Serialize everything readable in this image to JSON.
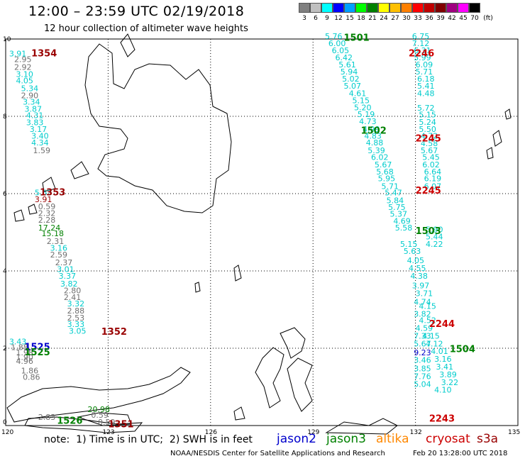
{
  "title": "12:00 – 23:59 UTC 02/19/2018",
  "subtitle": "12 hour collection of altimeter wave heights",
  "legend": {
    "colors": [
      "#808080",
      "#c0c0c0",
      "#00ffff",
      "#0000ff",
      "#00a0ff",
      "#00ff00",
      "#008000",
      "#ffff00",
      "#ffc000",
      "#ff8000",
      "#ff0000",
      "#c00000",
      "#800000",
      "#a00080",
      "#ff00ff",
      "#000000"
    ],
    "labels": [
      "3",
      "6",
      "9",
      "12",
      "15",
      "18",
      "21",
      "24",
      "27",
      "30",
      "33",
      "36",
      "39",
      "42",
      "45",
      "70",
      "(ft)"
    ]
  },
  "axes": {
    "lon_labels": [
      "120",
      "123",
      "126",
      "129",
      "132",
      "135"
    ],
    "lat_labels": [
      "10",
      "8",
      "6",
      "4",
      "2",
      "0"
    ]
  },
  "colors": {
    "jason2": "#0000cc",
    "jason3": "#008000",
    "altika": "#ff8800",
    "cryosat": "#cc0000",
    "s3a": "#990000",
    "cyan": "#00cccc",
    "gray": "#707070"
  },
  "passes": [
    {
      "id": "1354",
      "lon": 120.75,
      "lat": 9.55,
      "sat": "s3a"
    },
    {
      "id": "1353",
      "lon": 121.0,
      "lat": 5.95,
      "sat": "s3a"
    },
    {
      "id": "1352",
      "lon": 122.8,
      "lat": 2.35,
      "sat": "s3a"
    },
    {
      "id": "1351",
      "lon": 123.0,
      "lat": -0.05,
      "sat": "s3a"
    },
    {
      "id": "1525",
      "lon": 120.55,
      "lat": 1.95,
      "sat": "jason2"
    },
    {
      "id": "1525",
      "lon": 120.55,
      "lat": 1.82,
      "sat": "jason3"
    },
    {
      "id": "1526",
      "lon": 121.5,
      "lat": 0.05,
      "sat": "jason3"
    },
    {
      "id": "1501",
      "lon": 129.9,
      "lat": 9.95,
      "sat": "jason3"
    },
    {
      "id": "1502",
      "lon": 130.4,
      "lat": 7.55,
      "sat": "jason3"
    },
    {
      "id": "1503",
      "lon": 132.0,
      "lat": 4.95,
      "sat": "jason3"
    },
    {
      "id": "1504",
      "lon": 133.0,
      "lat": 1.9,
      "sat": "jason3"
    },
    {
      "id": "2246",
      "lon": 131.8,
      "lat": 9.55,
      "sat": "cryosat"
    },
    {
      "id": "2245",
      "lon": 132.0,
      "lat": 7.35,
      "sat": "cryosat"
    },
    {
      "id": "2245",
      "lon": 132.0,
      "lat": 6.0,
      "sat": "cryosat"
    },
    {
      "id": "2244",
      "lon": 132.4,
      "lat": 2.55,
      "sat": "cryosat"
    },
    {
      "id": "2243",
      "lon": 132.4,
      "lat": 0.1,
      "sat": "cryosat"
    }
  ],
  "obs": [
    {
      "v": "3.91",
      "lon": 120.1,
      "lat": 9.55,
      "c": "cyan"
    },
    {
      "v": "2.95",
      "lon": 120.25,
      "lat": 9.4,
      "c": "gray"
    },
    {
      "v": "2.92",
      "lon": 120.25,
      "lat": 9.2,
      "c": "gray"
    },
    {
      "v": "3.10",
      "lon": 120.3,
      "lat": 9.02,
      "c": "cyan"
    },
    {
      "v": "4.05",
      "lon": 120.3,
      "lat": 8.85,
      "c": "cyan"
    },
    {
      "v": "5.34",
      "lon": 120.45,
      "lat": 8.65,
      "c": "cyan"
    },
    {
      "v": "2.90",
      "lon": 120.45,
      "lat": 8.47,
      "c": "gray"
    },
    {
      "v": "3.34",
      "lon": 120.5,
      "lat": 8.3,
      "c": "cyan"
    },
    {
      "v": "3.87",
      "lon": 120.55,
      "lat": 8.12,
      "c": "cyan"
    },
    {
      "v": "4.31",
      "lon": 120.6,
      "lat": 7.95,
      "c": "cyan"
    },
    {
      "v": "3.83",
      "lon": 120.6,
      "lat": 7.77,
      "c": "cyan"
    },
    {
      "v": "3.17",
      "lon": 120.7,
      "lat": 7.6,
      "c": "cyan"
    },
    {
      "v": "3.40",
      "lon": 120.75,
      "lat": 7.42,
      "c": "cyan"
    },
    {
      "v": "4.34",
      "lon": 120.75,
      "lat": 7.25,
      "c": "cyan"
    },
    {
      "v": "1.59",
      "lon": 120.8,
      "lat": 7.05,
      "c": "gray"
    },
    {
      "v": "5.63",
      "lon": 120.85,
      "lat": 5.95,
      "c": "cyan"
    },
    {
      "v": "3.91",
      "lon": 120.85,
      "lat": 5.78,
      "c": "s3a"
    },
    {
      "v": "0.59",
      "lon": 120.95,
      "lat": 5.6,
      "c": "gray"
    },
    {
      "v": "2.32",
      "lon": 120.95,
      "lat": 5.42,
      "c": "gray"
    },
    {
      "v": "2.28",
      "lon": 120.95,
      "lat": 5.25,
      "c": "gray"
    },
    {
      "v": "17.24",
      "lon": 120.95,
      "lat": 5.05,
      "c": "jason3"
    },
    {
      "v": "15.18",
      "lon": 121.05,
      "lat": 4.9,
      "c": "jason3"
    },
    {
      "v": "2.31",
      "lon": 121.2,
      "lat": 4.7,
      "c": "gray"
    },
    {
      "v": "3.16",
      "lon": 121.3,
      "lat": 4.52,
      "c": "cyan"
    },
    {
      "v": "2.59",
      "lon": 121.3,
      "lat": 4.35,
      "c": "gray"
    },
    {
      "v": "2.37",
      "lon": 121.45,
      "lat": 4.15,
      "c": "gray"
    },
    {
      "v": "3.01",
      "lon": 121.5,
      "lat": 3.97,
      "c": "cyan"
    },
    {
      "v": "3.37",
      "lon": 121.55,
      "lat": 3.8,
      "c": "cyan"
    },
    {
      "v": "3.82",
      "lon": 121.6,
      "lat": 3.6,
      "c": "cyan"
    },
    {
      "v": "2.80",
      "lon": 121.7,
      "lat": 3.42,
      "c": "gray"
    },
    {
      "v": "2.41",
      "lon": 121.7,
      "lat": 3.25,
      "c": "gray"
    },
    {
      "v": "3.32",
      "lon": 121.8,
      "lat": 3.08,
      "c": "cyan"
    },
    {
      "v": "2.88",
      "lon": 121.8,
      "lat": 2.9,
      "c": "gray"
    },
    {
      "v": "2.53",
      "lon": 121.8,
      "lat": 2.72,
      "c": "gray"
    },
    {
      "v": "3.33",
      "lon": 121.8,
      "lat": 2.55,
      "c": "cyan"
    },
    {
      "v": "3.05",
      "lon": 121.85,
      "lat": 2.38,
      "c": "cyan"
    },
    {
      "v": "3.43",
      "lon": 120.1,
      "lat": 2.1,
      "c": "cyan"
    },
    {
      "v": "1.88",
      "lon": 120.15,
      "lat": 1.95,
      "c": "gray"
    },
    {
      "v": "1.98",
      "lon": 120.3,
      "lat": 1.82,
      "c": "gray"
    },
    {
      "v": "1.90",
      "lon": 120.3,
      "lat": 1.7,
      "c": "gray"
    },
    {
      "v": "4.96",
      "lon": 120.3,
      "lat": 1.6,
      "c": "gray"
    },
    {
      "v": "1.86",
      "lon": 120.45,
      "lat": 1.35,
      "c": "gray"
    },
    {
      "v": "0.86",
      "lon": 120.5,
      "lat": 1.18,
      "c": "gray"
    },
    {
      "v": "2.83",
      "lon": 120.95,
      "lat": 0.15,
      "c": "gray"
    },
    {
      "v": "20.98",
      "lon": 122.4,
      "lat": 0.35,
      "c": "jason3"
    },
    {
      "v": "0.59",
      "lon": 122.5,
      "lat": 0.2,
      "c": "gray"
    },
    {
      "v": "0.59",
      "lon": 122.7,
      "lat": 0.02,
      "c": "gray"
    },
    {
      "v": "5.76",
      "lon": 129.35,
      "lat": 10.0,
      "c": "cyan"
    },
    {
      "v": "6.00",
      "lon": 129.45,
      "lat": 9.82,
      "c": "cyan"
    },
    {
      "v": "6.05",
      "lon": 129.55,
      "lat": 9.63,
      "c": "cyan"
    },
    {
      "v": "6.42",
      "lon": 129.65,
      "lat": 9.45,
      "c": "cyan"
    },
    {
      "v": "5.61",
      "lon": 129.75,
      "lat": 9.27,
      "c": "cyan"
    },
    {
      "v": "5.94",
      "lon": 129.8,
      "lat": 9.08,
      "c": "cyan"
    },
    {
      "v": "5.02",
      "lon": 129.85,
      "lat": 8.9,
      "c": "cyan"
    },
    {
      "v": "5.07",
      "lon": 129.9,
      "lat": 8.72,
      "c": "cyan"
    },
    {
      "v": "4.61",
      "lon": 130.05,
      "lat": 8.52,
      "c": "cyan"
    },
    {
      "v": "5.15",
      "lon": 130.15,
      "lat": 8.34,
      "c": "cyan"
    },
    {
      "v": "5.20",
      "lon": 130.2,
      "lat": 8.16,
      "c": "cyan"
    },
    {
      "v": "5.19",
      "lon": 130.3,
      "lat": 7.98,
      "c": "cyan"
    },
    {
      "v": "4.73",
      "lon": 130.35,
      "lat": 7.8,
      "c": "cyan"
    },
    {
      "v": "4.99",
      "lon": 130.45,
      "lat": 7.6,
      "c": "cyan"
    },
    {
      "v": "4.83",
      "lon": 130.5,
      "lat": 7.42,
      "c": "cyan"
    },
    {
      "v": "4.88",
      "lon": 130.55,
      "lat": 7.25,
      "c": "cyan"
    },
    {
      "v": "5.39",
      "lon": 130.6,
      "lat": 7.05,
      "c": "cyan"
    },
    {
      "v": "6.02",
      "lon": 130.7,
      "lat": 6.87,
      "c": "cyan"
    },
    {
      "v": "5.67",
      "lon": 130.8,
      "lat": 6.68,
      "c": "cyan"
    },
    {
      "v": "5.68",
      "lon": 130.85,
      "lat": 6.5,
      "c": "cyan"
    },
    {
      "v": "5.95",
      "lon": 130.9,
      "lat": 6.32,
      "c": "cyan"
    },
    {
      "v": "5.71",
      "lon": 131.0,
      "lat": 6.12,
      "c": "cyan"
    },
    {
      "v": "5.47",
      "lon": 131.1,
      "lat": 5.95,
      "c": "cyan"
    },
    {
      "v": "5.84",
      "lon": 131.15,
      "lat": 5.75,
      "c": "cyan"
    },
    {
      "v": "5.75",
      "lon": 131.2,
      "lat": 5.58,
      "c": "cyan"
    },
    {
      "v": "5.37",
      "lon": 131.25,
      "lat": 5.4,
      "c": "cyan"
    },
    {
      "v": "4.69",
      "lon": 131.35,
      "lat": 5.22,
      "c": "cyan"
    },
    {
      "v": "5.58",
      "lon": 131.4,
      "lat": 5.05,
      "c": "cyan"
    },
    {
      "v": "6.75",
      "lon": 131.9,
      "lat": 10.0,
      "c": "cyan"
    },
    {
      "v": "7.12",
      "lon": 131.9,
      "lat": 9.82,
      "c": "cyan"
    },
    {
      "v": "6.31",
      "lon": 131.95,
      "lat": 9.63,
      "c": "cyan"
    },
    {
      "v": "5.99",
      "lon": 131.95,
      "lat": 9.45,
      "c": "cyan"
    },
    {
      "v": "6.09",
      "lon": 132.0,
      "lat": 9.27,
      "c": "cyan"
    },
    {
      "v": "5.71",
      "lon": 132.0,
      "lat": 9.08,
      "c": "cyan"
    },
    {
      "v": "6.18",
      "lon": 132.05,
      "lat": 8.9,
      "c": "cyan"
    },
    {
      "v": "5.41",
      "lon": 132.05,
      "lat": 8.72,
      "c": "cyan"
    },
    {
      "v": "4.48",
      "lon": 132.05,
      "lat": 8.52,
      "c": "cyan"
    },
    {
      "v": "5.72",
      "lon": 132.05,
      "lat": 8.15,
      "c": "cyan"
    },
    {
      "v": "5.15",
      "lon": 132.1,
      "lat": 7.97,
      "c": "cyan"
    },
    {
      "v": "5.24",
      "lon": 132.1,
      "lat": 7.78,
      "c": "cyan"
    },
    {
      "v": "5.50",
      "lon": 132.1,
      "lat": 7.6,
      "c": "cyan"
    },
    {
      "v": "4.72",
      "lon": 132.15,
      "lat": 7.42,
      "c": "cyan"
    },
    {
      "v": "4.58",
      "lon": 132.15,
      "lat": 7.23,
      "c": "cyan"
    },
    {
      "v": "5.67",
      "lon": 132.15,
      "lat": 7.05,
      "c": "cyan"
    },
    {
      "v": "5.45",
      "lon": 132.2,
      "lat": 6.87,
      "c": "cyan"
    },
    {
      "v": "6.02",
      "lon": 132.2,
      "lat": 6.68,
      "c": "cyan"
    },
    {
      "v": "6.64",
      "lon": 132.25,
      "lat": 6.5,
      "c": "cyan"
    },
    {
      "v": "6.19",
      "lon": 132.25,
      "lat": 6.32,
      "c": "cyan"
    },
    {
      "v": "6.07",
      "lon": 132.25,
      "lat": 6.12,
      "c": "cyan"
    },
    {
      "v": "5.90",
      "lon": 132.3,
      "lat": 5.0,
      "c": "cyan"
    },
    {
      "v": "5.44",
      "lon": 132.3,
      "lat": 4.82,
      "c": "cyan"
    },
    {
      "v": "5.15",
      "lon": 131.55,
      "lat": 4.62,
      "c": "cyan"
    },
    {
      "v": "4.22",
      "lon": 132.3,
      "lat": 4.62,
      "c": "cyan"
    },
    {
      "v": "5.63",
      "lon": 131.65,
      "lat": 4.44,
      "c": "cyan"
    },
    {
      "v": "4.05",
      "lon": 131.75,
      "lat": 4.2,
      "c": "cyan"
    },
    {
      "v": "4.55",
      "lon": 131.8,
      "lat": 4.0,
      "c": "cyan"
    },
    {
      "v": "4.38",
      "lon": 131.85,
      "lat": 3.8,
      "c": "cyan"
    },
    {
      "v": "3.97",
      "lon": 131.9,
      "lat": 3.55,
      "c": "cyan"
    },
    {
      "v": "3.71",
      "lon": 132.0,
      "lat": 3.35,
      "c": "cyan"
    },
    {
      "v": "4.74",
      "lon": 131.95,
      "lat": 3.13,
      "c": "cyan"
    },
    {
      "v": "4.15",
      "lon": 132.1,
      "lat": 3.02,
      "c": "cyan"
    },
    {
      "v": "3.82",
      "lon": 131.95,
      "lat": 2.82,
      "c": "cyan"
    },
    {
      "v": "4.52",
      "lon": 132.1,
      "lat": 2.65,
      "c": "cyan"
    },
    {
      "v": "4.59",
      "lon": 132.0,
      "lat": 2.45,
      "c": "cyan"
    },
    {
      "v": "7.33",
      "lon": 131.95,
      "lat": 2.25,
      "c": "cyan"
    },
    {
      "v": "4.15",
      "lon": 132.2,
      "lat": 2.25,
      "c": "cyan"
    },
    {
      "v": "5.67",
      "lon": 131.95,
      "lat": 2.05,
      "c": "cyan"
    },
    {
      "v": "4.12",
      "lon": 132.3,
      "lat": 2.05,
      "c": "cyan"
    },
    {
      "v": "4.01",
      "lon": 132.45,
      "lat": 1.85,
      "c": "cyan"
    },
    {
      "v": "9.23",
      "lon": 131.95,
      "lat": 1.82,
      "c": "jason2"
    },
    {
      "v": "3.16",
      "lon": 132.55,
      "lat": 1.65,
      "c": "cyan"
    },
    {
      "v": "3.46",
      "lon": 131.95,
      "lat": 1.62,
      "c": "cyan"
    },
    {
      "v": "3.41",
      "lon": 132.6,
      "lat": 1.45,
      "c": "cyan"
    },
    {
      "v": "3.85",
      "lon": 131.95,
      "lat": 1.4,
      "c": "cyan"
    },
    {
      "v": "3.89",
      "lon": 132.7,
      "lat": 1.25,
      "c": "cyan"
    },
    {
      "v": "7.76",
      "lon": 131.95,
      "lat": 1.2,
      "c": "cyan"
    },
    {
      "v": "3.22",
      "lon": 132.75,
      "lat": 1.05,
      "c": "cyan"
    },
    {
      "v": "5.04",
      "lon": 131.95,
      "lat": 1.0,
      "c": "cyan"
    },
    {
      "v": "4.10",
      "lon": 132.55,
      "lat": 0.85,
      "c": "cyan"
    }
  ],
  "note": "note:  1) Time is in UTC;  2) SWH is in feet",
  "satellites": [
    {
      "label": "jason2",
      "color": "#0000cc"
    },
    {
      "label": "jason3",
      "color": "#008000"
    },
    {
      "label": "altika",
      "color": "#ff8800"
    },
    {
      "label": "cryosat",
      "color": "#cc0000"
    },
    {
      "label": "s3a",
      "color": "#990000"
    }
  ],
  "source": "NOAA/NESDIS Center for Satellite Applications and Research",
  "stamp": "Feb 20 13:28:00 UTC 2018"
}
